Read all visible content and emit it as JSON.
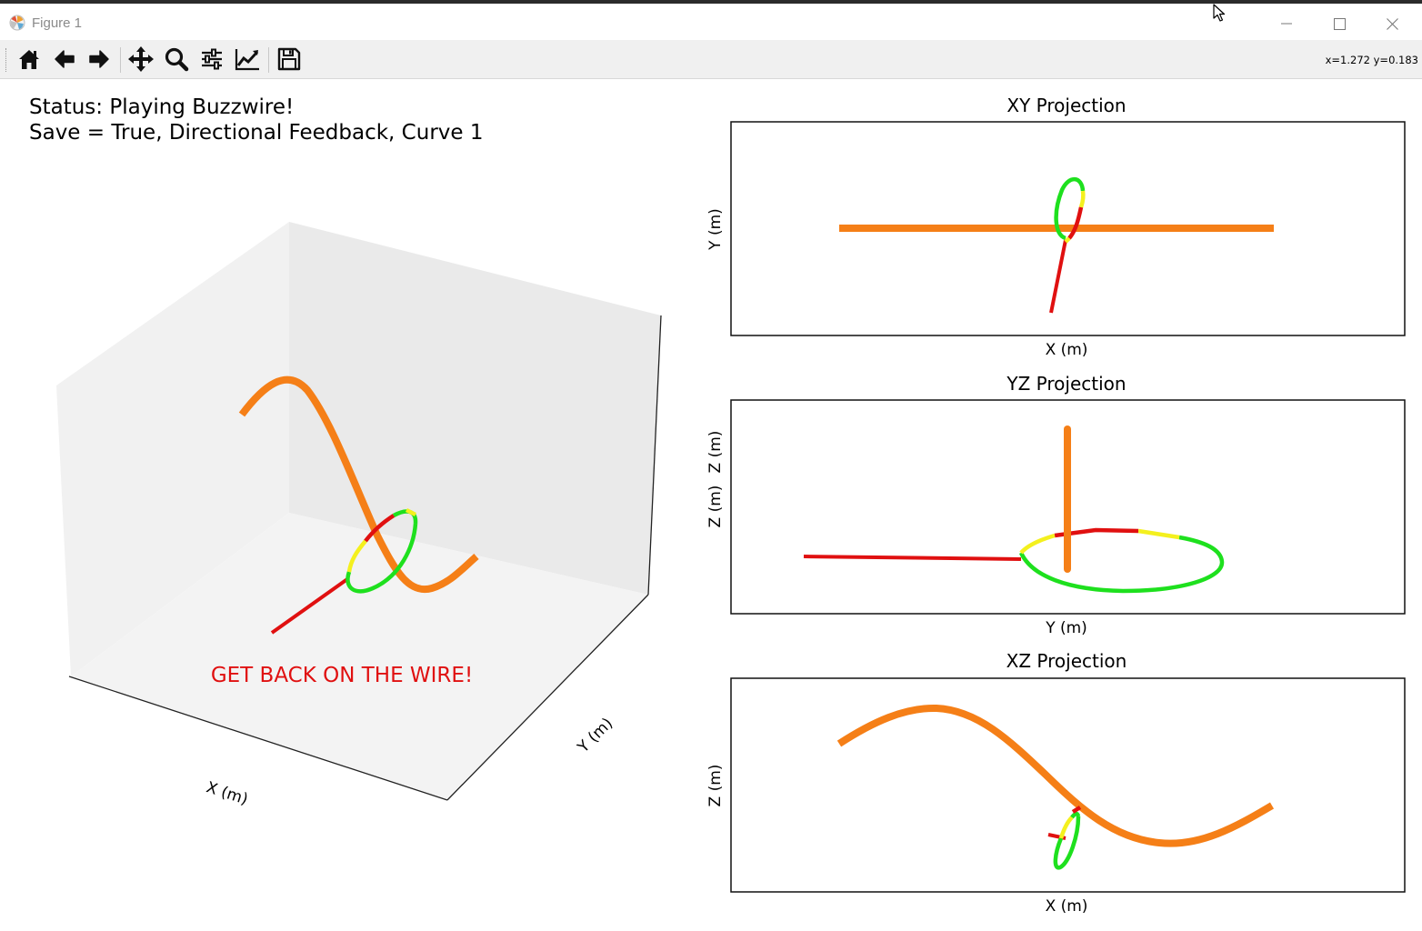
{
  "window": {
    "title": "Figure 1"
  },
  "toolbar": {
    "buttons": [
      {
        "name": "home-icon",
        "tooltip": "Reset original view"
      },
      {
        "name": "back-arrow-icon",
        "tooltip": "Back to previous view"
      },
      {
        "name": "forward-arrow-icon",
        "tooltip": "Forward to next view"
      },
      {
        "name": "pan-icon",
        "tooltip": "Pan axes"
      },
      {
        "name": "zoom-icon",
        "tooltip": "Zoom to rectangle"
      },
      {
        "name": "subplots-icon",
        "tooltip": "Configure subplots"
      },
      {
        "name": "edit-axes-icon",
        "tooltip": "Edit axis, curve and image parameters"
      },
      {
        "name": "save-icon",
        "tooltip": "Save the figure"
      }
    ],
    "coords": "x=1.272 y=0.183"
  },
  "status": {
    "line1": "Status: Playing Buzzwire!",
    "line2": "Save = True, Directional Feedback, Curve 1"
  },
  "plot3d": {
    "warning": "GET BACK ON THE WIRE!",
    "xlabel": "X (m)",
    "ylabel": "Y (m)"
  },
  "projections": {
    "xy": {
      "title": "XY Projection",
      "xlabel": "X (m)",
      "ylabel": "Y (m)"
    },
    "yz": {
      "title": "YZ Projection",
      "xlabel": "Y (m)",
      "ylabel": "Z (m)",
      "ylabel_overlap": "Z (m)"
    },
    "xz": {
      "title": "XZ Projection",
      "xlabel": "X (m)",
      "ylabel": "Z (m)"
    }
  },
  "colors": {
    "wire": "#f57f17",
    "ring_ok": "#1ee01e",
    "ring_warn": "#f4f01e",
    "ring_bad": "#e01010",
    "warning_text": "#e01010",
    "pane": "#f2f2f2"
  },
  "chart_data": [
    {
      "type": "line",
      "title": "",
      "xlabel": "X (m)",
      "ylabel": "Y (m)",
      "zlabel": "",
      "projection": "3d",
      "series": [],
      "grid": false
    },
    {
      "type": "line",
      "title": "XY Projection",
      "xlabel": "X (m)",
      "ylabel": "Y (m)",
      "ticks_visible": false,
      "series": []
    },
    {
      "type": "line",
      "title": "YZ Projection",
      "xlabel": "Y (m)",
      "ylabel": "Z (m)",
      "ticks_visible": false,
      "series": []
    },
    {
      "type": "line",
      "title": "XZ Projection",
      "xlabel": "X (m)",
      "ylabel": "Z (m)",
      "ticks_visible": false,
      "series": []
    }
  ]
}
